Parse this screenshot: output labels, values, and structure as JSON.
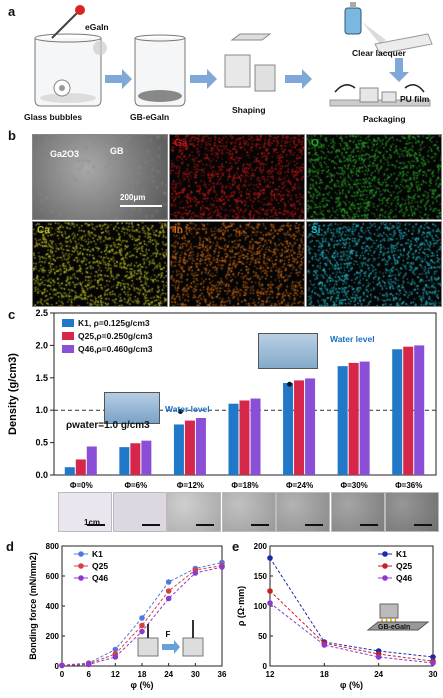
{
  "panel_a": {
    "letter": "a",
    "steps": [
      "Glass bubbles",
      "GB-eGaIn",
      "Shaping",
      "Packaging"
    ],
    "egain_label": "eGaIn",
    "lacquer_label": "Clear lacquer",
    "pu_label": "PU film"
  },
  "panel_b": {
    "letter": "b",
    "tiles": [
      {
        "tag": "",
        "color": "#8a8a8a"
      },
      {
        "tag": "Ga",
        "color": "#c41818"
      },
      {
        "tag": "O",
        "color": "#2aa82a"
      },
      {
        "tag": "Ca",
        "color": "#b8b828"
      },
      {
        "tag": "In",
        "color": "#d06a18"
      },
      {
        "tag": "Si",
        "color": "#20b8c8"
      }
    ],
    "sem_labels": {
      "oxide": "Ga2O3",
      "gb": "GB",
      "scale": "200μm"
    }
  },
  "panel_c": {
    "letter": "c",
    "water_level_1": "Water level",
    "water_level_2": "Water level",
    "water_density": "ρwater=1.0 g/cm3",
    "thumb_scale": "1cm"
  },
  "panel_d": {
    "letter": "d"
  },
  "panel_e": {
    "letter": "e",
    "inset_label": "GB-eGaIn"
  },
  "chart_data": [
    {
      "type": "bar",
      "ylabel": "Density (g/cm3)",
      "ylim": [
        0,
        2.5
      ],
      "yticks": [
        "0.0",
        "0.5",
        "1.0",
        "1.5",
        "2.0",
        "2.5"
      ],
      "categories": [
        "Φ=0%",
        "Φ=6%",
        "Φ=12%",
        "Φ=18%",
        "Φ=24%",
        "Φ=30%",
        "Φ=36%"
      ],
      "reference_line": 1.0,
      "legend_placement": "top-left",
      "series": [
        {
          "name": "K1,  ρ=0.125g/cm3",
          "color": "#1f78c8",
          "values": [
            0.12,
            0.43,
            0.78,
            1.1,
            1.42,
            1.68,
            1.94
          ]
        },
        {
          "name": "Q25,ρ=0.250g/cm3",
          "color": "#d6264a",
          "values": [
            0.24,
            0.49,
            0.84,
            1.15,
            1.46,
            1.73,
            1.98
          ]
        },
        {
          "name": "Q46,ρ=0.460g/cm3",
          "color": "#8a4fd6",
          "values": [
            0.44,
            0.53,
            0.88,
            1.18,
            1.49,
            1.75,
            2.0
          ]
        }
      ]
    },
    {
      "type": "line",
      "xlabel": "φ (%)",
      "ylabel": "Bonding force (mN/mm2)",
      "xlim": [
        0,
        36
      ],
      "ylim": [
        0,
        800
      ],
      "xticks": [
        "0",
        "6",
        "12",
        "18",
        "24",
        "30",
        "36"
      ],
      "yticks": [
        "0",
        "200",
        "400",
        "600",
        "800"
      ],
      "x": [
        0,
        6,
        12,
        18,
        24,
        30,
        36
      ],
      "legend_placement": "top-left",
      "inset_force": "F",
      "series": [
        {
          "name": "K1",
          "color": "#5577dd",
          "values": [
            5,
            20,
            110,
            320,
            560,
            650,
            690
          ]
        },
        {
          "name": "Q25",
          "color": "#d64040",
          "values": [
            5,
            15,
            80,
            270,
            500,
            640,
            670
          ]
        },
        {
          "name": "Q46",
          "color": "#8a3ad0",
          "values": [
            3,
            10,
            60,
            230,
            450,
            620,
            660
          ]
        }
      ]
    },
    {
      "type": "line",
      "xlabel": "φ (%)",
      "ylabel": "ρ (Ω·mm)",
      "xlim": [
        12,
        30
      ],
      "ylim": [
        0,
        200
      ],
      "xticks": [
        "12",
        "18",
        "24",
        "30"
      ],
      "yticks": [
        "0",
        "50",
        "100",
        "150",
        "200"
      ],
      "x": [
        12,
        18,
        24,
        30
      ],
      "legend_placement": "top-right",
      "series": [
        {
          "name": "K1",
          "color": "#1a2ab0",
          "values": [
            180,
            40,
            25,
            15
          ]
        },
        {
          "name": "Q25",
          "color": "#c42222",
          "values": [
            125,
            38,
            20,
            8
          ]
        },
        {
          "name": "Q46",
          "color": "#8a3ad0",
          "values": [
            105,
            35,
            15,
            5
          ]
        }
      ]
    }
  ]
}
